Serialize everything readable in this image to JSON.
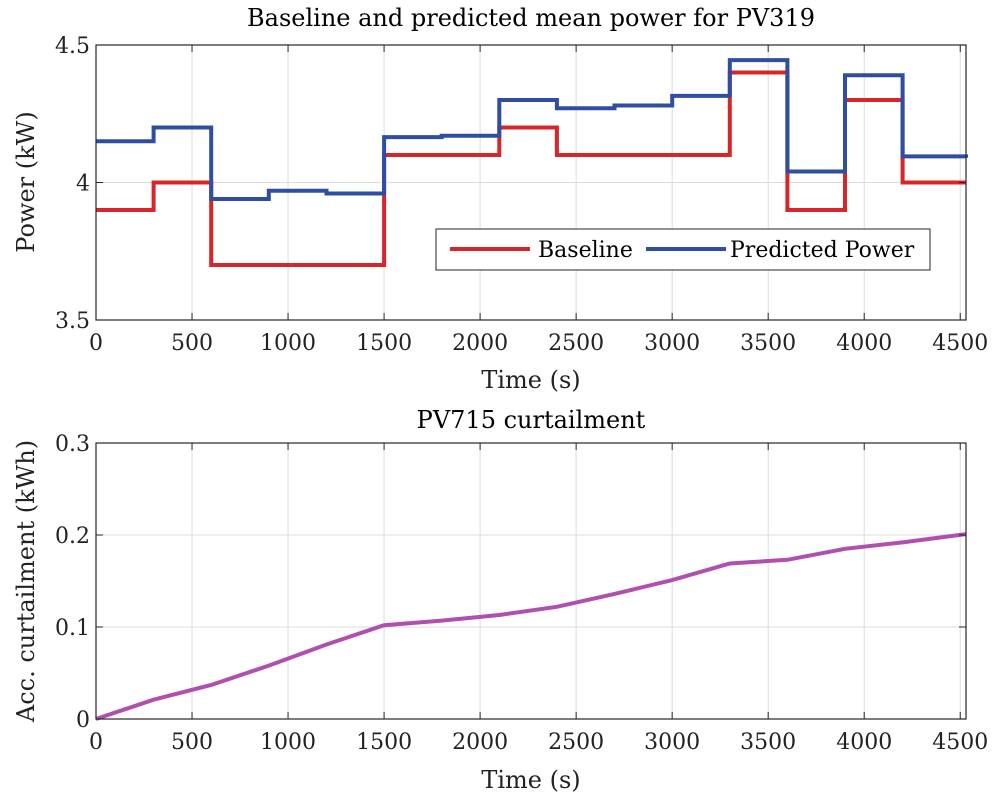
{
  "chart_data": [
    {
      "type": "line",
      "step": true,
      "title": "Baseline and predicted mean power for PV319",
      "xlabel": "Time (s)",
      "ylabel": "Power (kW)",
      "xlim": [
        0,
        4530
      ],
      "ylim": [
        3.5,
        4.5
      ],
      "xticks": [
        "0",
        "500",
        "1000",
        "1500",
        "2000",
        "2500",
        "3000",
        "3500",
        "4000",
        "4500"
      ],
      "xtick_values": [
        0,
        500,
        1000,
        1500,
        2000,
        2500,
        3000,
        3500,
        4000,
        4500
      ],
      "yticks": [
        "3.5",
        "4",
        "4.5"
      ],
      "ytick_values": [
        3.5,
        4.0,
        4.5
      ],
      "grid": true,
      "legend_position": "lower-right",
      "series": [
        {
          "name": "Baseline",
          "color": "#d7252a",
          "x": [
            0,
            300,
            600,
            900,
            1200,
            1500,
            1800,
            2100,
            2400,
            2700,
            3000,
            3300,
            3600,
            3900,
            4200,
            4530
          ],
          "y": [
            3.9,
            4.0,
            3.7,
            3.7,
            3.7,
            4.1,
            4.1,
            4.2,
            4.1,
            4.1,
            4.1,
            4.4,
            3.9,
            4.3,
            4.0,
            4.0
          ]
        },
        {
          "name": "Predicted Power",
          "color": "#2e4ea1",
          "x": [
            0,
            300,
            600,
            900,
            1200,
            1500,
            1800,
            2100,
            2400,
            2700,
            3000,
            3300,
            3600,
            3900,
            4200,
            4530
          ],
          "y": [
            4.15,
            4.2,
            3.94,
            3.97,
            3.96,
            4.165,
            4.17,
            4.3,
            4.27,
            4.28,
            4.315,
            4.445,
            4.04,
            4.39,
            4.095,
            4.09
          ]
        }
      ]
    },
    {
      "type": "line",
      "title": "PV715 curtailment",
      "xlabel": "Time (s)",
      "ylabel": "Acc. curtailment (kWh)",
      "xlim": [
        0,
        4530
      ],
      "ylim": [
        0,
        0.3
      ],
      "xticks": [
        "0",
        "500",
        "1000",
        "1500",
        "2000",
        "2500",
        "3000",
        "3500",
        "4000",
        "4500"
      ],
      "xtick_values": [
        0,
        500,
        1000,
        1500,
        2000,
        2500,
        3000,
        3500,
        4000,
        4500
      ],
      "yticks": [
        "0",
        "0.1",
        "0.2",
        "0.3"
      ],
      "ytick_values": [
        0,
        0.1,
        0.2,
        0.3
      ],
      "grid": true,
      "series": [
        {
          "color": "#b04fae",
          "x": [
            0,
            300,
            600,
            900,
            1200,
            1500,
            1800,
            2100,
            2400,
            2700,
            3000,
            3300,
            3600,
            3900,
            4200,
            4530
          ],
          "y": [
            0,
            0.021,
            0.037,
            0.058,
            0.081,
            0.102,
            0.107,
            0.113,
            0.122,
            0.136,
            0.151,
            0.169,
            0.173,
            0.185,
            0.192,
            0.201
          ]
        }
      ]
    }
  ]
}
